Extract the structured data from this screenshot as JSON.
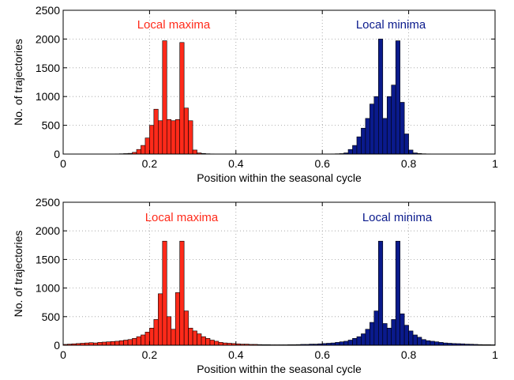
{
  "colors": {
    "maxima": "#ff2a1a",
    "minima": "#0a1a8c",
    "axis": "#000000",
    "grid": "#9a9a9a",
    "background": "#ffffff"
  },
  "chart_data": [
    {
      "type": "bar",
      "xlabel": "Position within the seasonal cycle",
      "ylabel": "No. of trajectories",
      "xlim": [
        0,
        1
      ],
      "ylim": [
        0,
        2500
      ],
      "xticks": [
        0,
        0.2,
        0.4,
        0.6,
        0.8,
        1
      ],
      "xtick_labels": [
        "0",
        "0.2",
        "0.4",
        "0.6",
        "0.8",
        "1"
      ],
      "yticks": [
        0,
        500,
        1000,
        1500,
        2000,
        2500
      ],
      "ytick_labels": [
        "0",
        "500",
        "1000",
        "1500",
        "2000",
        "2500"
      ],
      "grid": true,
      "bin_width": 0.01,
      "series": [
        {
          "name": "Local maxima",
          "color": "#ff2a1a",
          "bins": [
            0.12,
            0.13,
            0.14,
            0.15,
            0.16,
            0.17,
            0.18,
            0.19,
            0.2,
            0.21,
            0.22,
            0.23,
            0.24,
            0.25,
            0.26,
            0.27,
            0.28,
            0.29,
            0.3,
            0.31,
            0.32,
            0.33,
            0.34
          ],
          "values": [
            3,
            5,
            8,
            12,
            30,
            80,
            150,
            280,
            500,
            780,
            580,
            1970,
            600,
            580,
            600,
            1940,
            800,
            580,
            70,
            20,
            10,
            5,
            3
          ]
        },
        {
          "name": "Local minima",
          "color": "#0a1a8c",
          "bins": [
            0.62,
            0.63,
            0.64,
            0.65,
            0.66,
            0.67,
            0.68,
            0.69,
            0.7,
            0.71,
            0.72,
            0.73,
            0.74,
            0.75,
            0.76,
            0.77,
            0.78,
            0.79,
            0.8,
            0.81,
            0.82,
            0.83,
            0.84
          ],
          "values": [
            3,
            5,
            8,
            20,
            80,
            150,
            300,
            450,
            620,
            870,
            1000,
            2000,
            620,
            1000,
            1200,
            1970,
            900,
            350,
            70,
            20,
            10,
            5,
            3
          ]
        }
      ]
    },
    {
      "type": "bar",
      "xlabel": "Position within the seasonal cycle",
      "ylabel": "No. of trajectories",
      "xlim": [
        0,
        1
      ],
      "ylim": [
        0,
        2500
      ],
      "xticks": [
        0,
        0.2,
        0.4,
        0.6,
        0.8,
        1
      ],
      "xtick_labels": [
        "0",
        "0.2",
        "0.4",
        "0.6",
        "0.8",
        "1"
      ],
      "yticks": [
        0,
        500,
        1000,
        1500,
        2000,
        2500
      ],
      "ytick_labels": [
        "0",
        "500",
        "1000",
        "1500",
        "2000",
        "2500"
      ],
      "grid": true,
      "bin_width": 0.01,
      "series": [
        {
          "name": "Local maxima",
          "color": "#ff2a1a",
          "bins": [
            0.0,
            0.01,
            0.02,
            0.03,
            0.04,
            0.05,
            0.06,
            0.07,
            0.08,
            0.09,
            0.1,
            0.11,
            0.12,
            0.13,
            0.14,
            0.15,
            0.16,
            0.17,
            0.18,
            0.19,
            0.2,
            0.21,
            0.22,
            0.23,
            0.24,
            0.25,
            0.26,
            0.27,
            0.28,
            0.29,
            0.3,
            0.31,
            0.32,
            0.33,
            0.34,
            0.35,
            0.36,
            0.37,
            0.38,
            0.39,
            0.4,
            0.41,
            0.42,
            0.43,
            0.44,
            0.45,
            0.46,
            0.47,
            0.48,
            0.49
          ],
          "values": [
            15,
            20,
            25,
            30,
            35,
            40,
            45,
            40,
            50,
            55,
            60,
            65,
            70,
            80,
            90,
            100,
            120,
            150,
            180,
            230,
            300,
            450,
            900,
            1820,
            500,
            280,
            920,
            1820,
            600,
            300,
            250,
            200,
            150,
            120,
            90,
            70,
            50,
            40,
            35,
            30,
            25,
            20,
            20,
            15,
            15,
            12,
            10,
            10,
            8,
            8
          ]
        },
        {
          "name": "Local minima",
          "color": "#0a1a8c",
          "bins": [
            0.5,
            0.51,
            0.52,
            0.53,
            0.54,
            0.55,
            0.56,
            0.57,
            0.58,
            0.59,
            0.6,
            0.61,
            0.62,
            0.63,
            0.64,
            0.65,
            0.66,
            0.67,
            0.68,
            0.69,
            0.7,
            0.71,
            0.72,
            0.73,
            0.74,
            0.75,
            0.76,
            0.77,
            0.78,
            0.79,
            0.8,
            0.81,
            0.82,
            0.83,
            0.84,
            0.85,
            0.86,
            0.87,
            0.88,
            0.89,
            0.9,
            0.91,
            0.92,
            0.93,
            0.94,
            0.95,
            0.96,
            0.97,
            0.98,
            0.99
          ],
          "values": [
            8,
            8,
            10,
            10,
            12,
            15,
            15,
            20,
            20,
            25,
            30,
            35,
            40,
            50,
            60,
            70,
            90,
            120,
            150,
            200,
            280,
            400,
            600,
            1820,
            380,
            300,
            450,
            1820,
            550,
            350,
            250,
            180,
            140,
            100,
            80,
            70,
            60,
            50,
            40,
            35,
            30,
            28,
            25,
            20,
            18,
            15,
            12,
            10,
            10,
            8
          ]
        }
      ]
    }
  ]
}
